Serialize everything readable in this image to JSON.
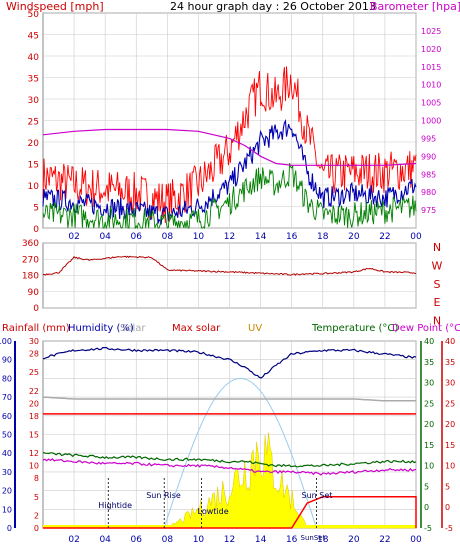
{
  "header": {
    "windspeed_label": "Windspeed [mph]",
    "title": "24 hour graph day : 26 October 2013",
    "barometer_label": "Barometer [hpa]"
  },
  "colors": {
    "windspeed": "#ff0000",
    "gust": "#ff0000",
    "avg_wind": "#0000b0",
    "wind_low": "#008000",
    "barometer": "#cc00cc",
    "wind_dir": "#b00000",
    "humidity": "#000080",
    "solar": "#aaaaaa",
    "max_solar": "#ff0000",
    "uv": "#cc8800",
    "temperature": "#006600",
    "dew_point": "#cc00cc",
    "rain": "#ff0000",
    "sun_fill": "#ffff00",
    "grid": "#cccccc",
    "axis_blue": "#0000aa",
    "axis_green": "#006600",
    "axis_red": "#cc0000"
  },
  "x_ticks": [
    "02",
    "04",
    "06",
    "08",
    "10",
    "12",
    "14",
    "16",
    "18",
    "20",
    "22",
    "00"
  ],
  "labels3": {
    "rainfall": "Rainfall (mm)",
    "humidity": "Humidity (%)",
    "solar": "Solar",
    "max_solar": "Max solar",
    "uv": "UV",
    "temperature": "Temperature (°C)",
    "dew_point": "Dew Point (°C)",
    "hightide": "Hightide",
    "sunrise": "Sun Rise",
    "lowtide": "Lowtide",
    "sunset": "Sun Set",
    "sunset_bottom": "SunSet"
  },
  "chart_data": [
    {
      "type": "line",
      "title": "24 hour graph day : 26 October 2013",
      "ylabel": "Windspeed [mph]",
      "y2label": "Barometer [hpa]",
      "ylim": [
        0,
        50
      ],
      "y_ticks": [
        0,
        5,
        10,
        15,
        20,
        25,
        30,
        35,
        40,
        45,
        50
      ],
      "y2lim": [
        970,
        1030
      ],
      "y2_ticks": [
        975,
        980,
        985,
        990,
        995,
        1000,
        1005,
        1010,
        1015,
        1020,
        1025
      ],
      "x_hours": [
        0,
        2,
        4,
        6,
        8,
        10,
        12,
        13,
        14,
        15,
        16,
        17,
        18,
        20,
        22,
        24
      ],
      "series": [
        {
          "key": "gust",
          "values": [
            12,
            10,
            9,
            8,
            6,
            10,
            18,
            26,
            33,
            30,
            35,
            22,
            12,
            13,
            13,
            14
          ]
        },
        {
          "key": "average",
          "values": [
            7,
            6,
            5,
            4,
            3,
            5,
            10,
            15,
            20,
            22,
            24,
            13,
            7,
            8,
            7,
            10
          ]
        },
        {
          "key": "low",
          "values": [
            3,
            3,
            2,
            2,
            1,
            2,
            6,
            9,
            12,
            10,
            13,
            6,
            3,
            3,
            4,
            5
          ]
        },
        {
          "key": "barometer",
          "axis": "y2",
          "values": [
            996,
            997,
            997.5,
            997.5,
            997.5,
            997,
            995,
            993,
            990,
            988,
            987.5,
            987.5,
            987.5,
            987.5,
            987.5,
            988
          ]
        }
      ]
    },
    {
      "type": "line",
      "ylabel": "Wind direction",
      "ylim": [
        0,
        360
      ],
      "y_ticks": [
        0,
        90,
        180,
        270,
        360
      ],
      "compass": [
        "N",
        "W",
        "S",
        "E",
        "N"
      ],
      "x_hours": [
        0,
        1,
        2,
        3,
        5,
        7,
        8,
        12,
        16,
        17,
        18,
        20,
        21,
        22,
        24
      ],
      "values": [
        185,
        195,
        280,
        265,
        285,
        280,
        210,
        200,
        185,
        190,
        190,
        200,
        220,
        200,
        195
      ]
    },
    {
      "type": "line",
      "left_axis": {
        "label": "Rainfall (mm)",
        "lim": [
          0,
          30
        ],
        "ticks": [
          0,
          2,
          5,
          8,
          10,
          12,
          15,
          18,
          20,
          22,
          25,
          28,
          30
        ]
      },
      "humidity_axis": {
        "label": "Humidity (%)",
        "lim": [
          0,
          100
        ],
        "ticks": [
          0,
          10,
          20,
          30,
          40,
          50,
          60,
          70,
          80,
          90,
          100
        ]
      },
      "temp_axis": {
        "label": "Temperature (°C)",
        "lim": [
          -5,
          40
        ],
        "ticks": [
          -5,
          0,
          5,
          10,
          15,
          20,
          25,
          30,
          35,
          40
        ]
      },
      "x_hours": [
        0,
        2,
        4,
        6,
        8,
        10,
        12,
        13,
        14,
        15,
        16,
        18,
        20,
        22,
        24
      ],
      "series": [
        {
          "key": "humidity",
          "axis": "humidity",
          "values": [
            91,
            95,
            96,
            95,
            95,
            94,
            90,
            86,
            80,
            87,
            93,
            95,
            95,
            93,
            91
          ]
        },
        {
          "key": "max_solar",
          "axis": "humidity",
          "values": [
            61,
            61,
            61,
            61,
            61,
            61,
            61,
            61,
            61,
            61,
            61,
            61,
            61,
            61,
            61
          ]
        },
        {
          "key": "solar_line",
          "axis": "humidity",
          "values": [
            70,
            69,
            69,
            69,
            69,
            69,
            69,
            69,
            69,
            69,
            69,
            69,
            69,
            68,
            68
          ]
        },
        {
          "key": "temperature",
          "axis": "temp",
          "values": [
            13,
            12.5,
            12,
            12,
            11.5,
            11.5,
            11,
            11,
            10.5,
            10,
            10,
            10,
            10.5,
            11,
            11
          ]
        },
        {
          "key": "dew_point",
          "axis": "temp",
          "values": [
            11.5,
            11,
            10.5,
            10.5,
            10,
            10,
            9.5,
            9,
            8.5,
            8.5,
            8.5,
            8,
            8.5,
            9,
            9
          ]
        },
        {
          "key": "rain",
          "axis": "left",
          "x_hours": [
            0,
            16,
            17,
            18,
            24
          ],
          "values": [
            0,
            0,
            4,
            5,
            5
          ]
        },
        {
          "key": "solar_fill",
          "axis": "left",
          "x_hours": [
            0,
            8,
            10,
            12,
            13,
            14,
            15,
            16,
            17,
            24
          ],
          "values": [
            0,
            0,
            3,
            7,
            10,
            14,
            9,
            5,
            0,
            0
          ]
        }
      ],
      "annotations": [
        {
          "label": "Hightide",
          "hour": 4.2
        },
        {
          "label": "Sun Rise",
          "hour": 7.8
        },
        {
          "label": "Lowtide",
          "hour": 10.2
        },
        {
          "label": "Sun Set",
          "hour": 17.6
        }
      ]
    }
  ]
}
